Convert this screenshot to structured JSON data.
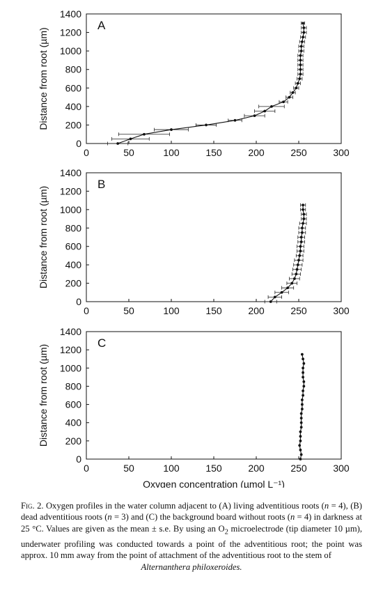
{
  "chart_data": [
    {
      "type": "scatter",
      "panel_label": "A",
      "ylabel": "Distance from root (µm)",
      "xlim": [
        0,
        300
      ],
      "ylim": [
        0,
        1400
      ],
      "xticks": [
        0,
        50,
        100,
        150,
        200,
        250,
        300
      ],
      "yticks": [
        0,
        200,
        400,
        600,
        800,
        1000,
        1200,
        1400
      ],
      "grid": false,
      "error_bars": "horizontal",
      "points": [
        {
          "x": 37,
          "y": 0,
          "err": 12
        },
        {
          "x": 52,
          "y": 50,
          "err": 22
        },
        {
          "x": 68,
          "y": 100,
          "err": 30
        },
        {
          "x": 100,
          "y": 150,
          "err": 20
        },
        {
          "x": 141,
          "y": 200,
          "err": 12
        },
        {
          "x": 175,
          "y": 250,
          "err": 8
        },
        {
          "x": 198,
          "y": 300,
          "err": 12
        },
        {
          "x": 210,
          "y": 350,
          "err": 12
        },
        {
          "x": 218,
          "y": 400,
          "err": 15
        },
        {
          "x": 232,
          "y": 450,
          "err": 5
        },
        {
          "x": 239,
          "y": 500,
          "err": 4
        },
        {
          "x": 243,
          "y": 550,
          "err": 3
        },
        {
          "x": 247,
          "y": 600,
          "err": 3
        },
        {
          "x": 249,
          "y": 650,
          "err": 3
        },
        {
          "x": 251,
          "y": 700,
          "err": 3
        },
        {
          "x": 252,
          "y": 750,
          "err": 3
        },
        {
          "x": 252,
          "y": 800,
          "err": 3
        },
        {
          "x": 252,
          "y": 850,
          "err": 3
        },
        {
          "x": 252,
          "y": 900,
          "err": 3
        },
        {
          "x": 252,
          "y": 950,
          "err": 3
        },
        {
          "x": 253,
          "y": 1000,
          "err": 3
        },
        {
          "x": 253,
          "y": 1050,
          "err": 3
        },
        {
          "x": 254,
          "y": 1100,
          "err": 3
        },
        {
          "x": 255,
          "y": 1150,
          "err": 3
        },
        {
          "x": 256,
          "y": 1200,
          "err": 3
        },
        {
          "x": 256,
          "y": 1250,
          "err": 3
        },
        {
          "x": 255,
          "y": 1300,
          "err": 2
        }
      ]
    },
    {
      "type": "scatter",
      "panel_label": "B",
      "ylabel": "Distance from root (µm)",
      "xlim": [
        0,
        300
      ],
      "ylim": [
        0,
        1400
      ],
      "xticks": [
        0,
        50,
        100,
        150,
        200,
        250,
        300
      ],
      "yticks": [
        0,
        200,
        400,
        600,
        800,
        1000,
        1200,
        1400
      ],
      "grid": false,
      "error_bars": "horizontal",
      "points": [
        {
          "x": 217,
          "y": 0,
          "err": 7
        },
        {
          "x": 222,
          "y": 50,
          "err": 8
        },
        {
          "x": 230,
          "y": 100,
          "err": 8
        },
        {
          "x": 237,
          "y": 150,
          "err": 7
        },
        {
          "x": 242,
          "y": 200,
          "err": 6
        },
        {
          "x": 245,
          "y": 250,
          "err": 6
        },
        {
          "x": 247,
          "y": 300,
          "err": 5
        },
        {
          "x": 248,
          "y": 350,
          "err": 5
        },
        {
          "x": 249,
          "y": 400,
          "err": 5
        },
        {
          "x": 250,
          "y": 450,
          "err": 5
        },
        {
          "x": 251,
          "y": 500,
          "err": 4
        },
        {
          "x": 252,
          "y": 550,
          "err": 4
        },
        {
          "x": 252,
          "y": 600,
          "err": 4
        },
        {
          "x": 253,
          "y": 650,
          "err": 4
        },
        {
          "x": 253,
          "y": 700,
          "err": 4
        },
        {
          "x": 254,
          "y": 750,
          "err": 4
        },
        {
          "x": 254,
          "y": 800,
          "err": 4
        },
        {
          "x": 255,
          "y": 850,
          "err": 4
        },
        {
          "x": 256,
          "y": 900,
          "err": 3
        },
        {
          "x": 256,
          "y": 950,
          "err": 3
        },
        {
          "x": 255,
          "y": 1000,
          "err": 3
        },
        {
          "x": 255,
          "y": 1050,
          "err": 3
        }
      ]
    },
    {
      "type": "scatter",
      "panel_label": "C",
      "ylabel": "Distance from root (µm)",
      "xlabel": "Oxygen concentration (µmol L⁻¹)",
      "xlim": [
        0,
        300
      ],
      "ylim": [
        0,
        1400
      ],
      "xticks": [
        0,
        50,
        100,
        150,
        200,
        250,
        300
      ],
      "yticks": [
        0,
        200,
        400,
        600,
        800,
        1000,
        1200,
        1400
      ],
      "grid": false,
      "error_bars": "none",
      "points": [
        {
          "x": 252,
          "y": 0
        },
        {
          "x": 253,
          "y": 50
        },
        {
          "x": 252,
          "y": 100
        },
        {
          "x": 251,
          "y": 150
        },
        {
          "x": 252,
          "y": 200
        },
        {
          "x": 252,
          "y": 250
        },
        {
          "x": 252,
          "y": 300
        },
        {
          "x": 253,
          "y": 350
        },
        {
          "x": 253,
          "y": 400
        },
        {
          "x": 253,
          "y": 450
        },
        {
          "x": 253,
          "y": 500
        },
        {
          "x": 254,
          "y": 550
        },
        {
          "x": 254,
          "y": 600
        },
        {
          "x": 254,
          "y": 650
        },
        {
          "x": 255,
          "y": 700
        },
        {
          "x": 255,
          "y": 750
        },
        {
          "x": 256,
          "y": 800
        },
        {
          "x": 256,
          "y": 850
        },
        {
          "x": 255,
          "y": 900
        },
        {
          "x": 255,
          "y": 950
        },
        {
          "x": 255,
          "y": 1000
        },
        {
          "x": 256,
          "y": 1050
        },
        {
          "x": 255,
          "y": 1100
        },
        {
          "x": 254,
          "y": 1150
        }
      ]
    }
  ],
  "caption": {
    "label": "Fig. 2.",
    "part1": " Oxygen profiles in the water column adjacent to (A) living adventitious roots (",
    "n_a": "n",
    "part2": " = 4), (B) dead adventitious roots (",
    "n_b": "n",
    "part3": " = 3) and (C) the background board without roots (",
    "n_c": "n",
    "part4": " = 4) in darkness at 25 °C. Values are given as the mean ± s.e. By using an O",
    "sub2": "2",
    "part5": " microelectrode (tip diameter 10 µm), underwater profiling was conducted towards a point of the adventitious root; the point was approx. 10 mm away from the point of attachment of the adventitious root to the stem of",
    "species": "Alternanthera philoxeroides."
  }
}
